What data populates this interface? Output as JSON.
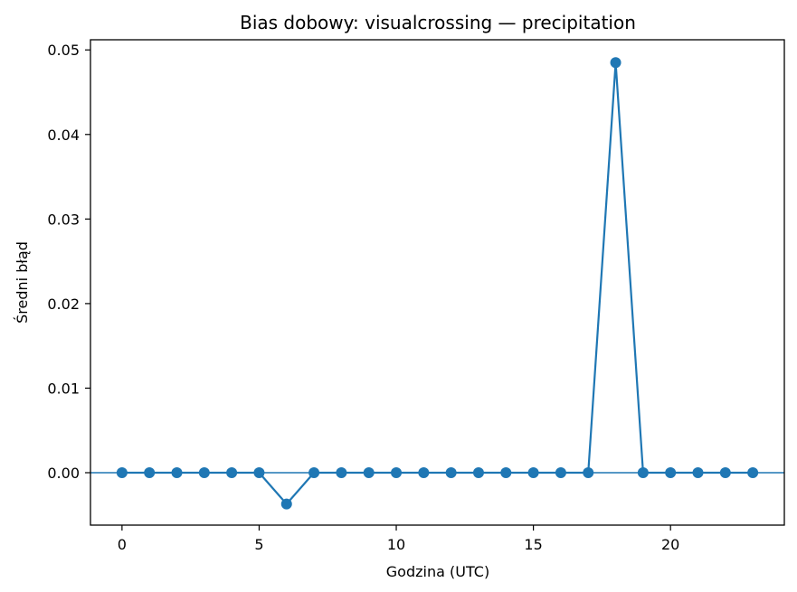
{
  "chart_data": {
    "type": "line",
    "title": "Bias dobowy: visualcrossing — precipitation",
    "xlabel": "Godzina (UTC)",
    "ylabel": "Średni błąd",
    "xlim": [
      -1.15,
      24.15
    ],
    "ylim": [
      -0.0062,
      0.0512
    ],
    "xticks": [
      0,
      5,
      10,
      15,
      20
    ],
    "xtick_labels": [
      "0",
      "5",
      "10",
      "15",
      "20"
    ],
    "yticks": [
      0.0,
      0.01,
      0.02,
      0.03,
      0.04,
      0.05
    ],
    "ytick_labels": [
      "0.00",
      "0.01",
      "0.02",
      "0.03",
      "0.04",
      "0.05"
    ],
    "grid": false,
    "legend": "none",
    "reference_line": 0.0,
    "series": [
      {
        "color": "#1f77b4",
        "marker": "circle",
        "x": [
          0,
          1,
          2,
          3,
          4,
          5,
          6,
          7,
          8,
          9,
          10,
          11,
          12,
          13,
          14,
          15,
          16,
          17,
          18,
          19,
          20,
          21,
          22,
          23
        ],
        "values": [
          0,
          0,
          0,
          0,
          0,
          0,
          -0.0037,
          0,
          0,
          0,
          0,
          0,
          0,
          0,
          0,
          0,
          0,
          0,
          0.0485,
          0,
          0,
          0,
          0,
          0
        ]
      }
    ]
  }
}
